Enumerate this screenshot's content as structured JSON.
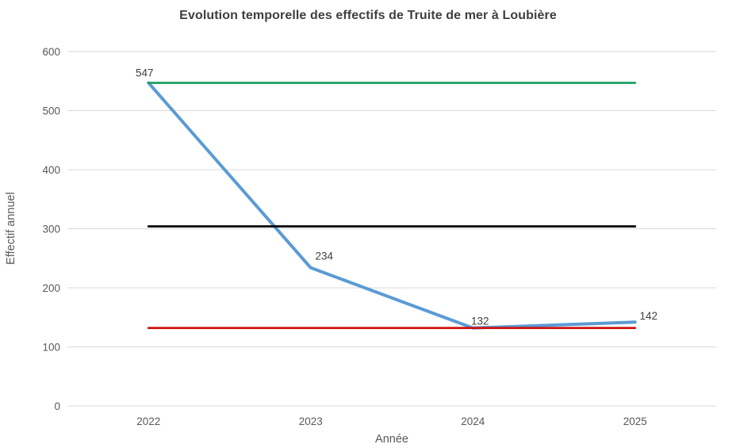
{
  "chart_data": {
    "type": "line",
    "title": "Evolution temporelle des effectifs de Truite de mer à Loubière",
    "xlabel": "Année",
    "ylabel": "Effectif annuel",
    "categories": [
      "2022",
      "2023",
      "2024",
      "2025"
    ],
    "series": [
      {
        "name": "effectif-annuel",
        "color": "#5B9BD5",
        "values": [
          547,
          234,
          132,
          142
        ],
        "data_labels": [
          "547",
          "234",
          "132",
          "142"
        ]
      },
      {
        "name": "reference-max-line",
        "color": "#1E9E60",
        "values": [
          547,
          547,
          547,
          547
        ]
      },
      {
        "name": "reference-mean-line",
        "color": "#000000",
        "values": [
          304,
          304,
          304,
          304
        ]
      },
      {
        "name": "reference-min-line",
        "color": "#D01212",
        "values": [
          132,
          132,
          132,
          132
        ]
      }
    ],
    "ylim": [
      0,
      600
    ],
    "yticks": [
      0,
      100,
      200,
      300,
      400,
      500,
      600
    ],
    "grid": "horizontal",
    "legend": "none"
  },
  "colors": {
    "gridline": "#D9D9D9",
    "tick_text": "#595959",
    "title_text": "#3F3F3F",
    "data_label_text": "#404040",
    "background": "#FFFFFF"
  }
}
